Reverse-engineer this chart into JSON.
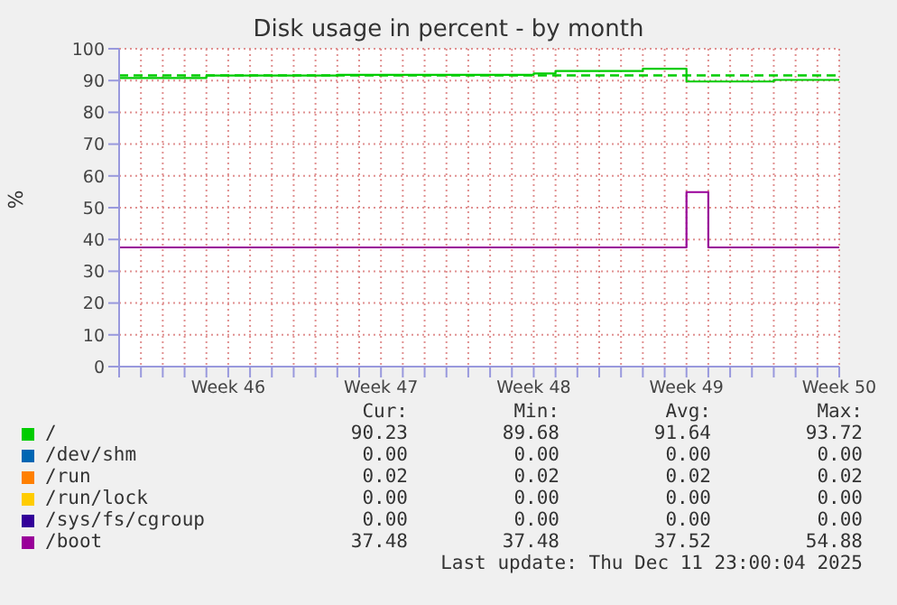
{
  "chart_data": {
    "type": "step",
    "title": "Disk usage in percent - by month",
    "ylabel": "%",
    "categories": [
      null,
      null,
      null,
      null,
      null,
      "Week 46",
      null,
      null,
      null,
      null,
      null,
      null,
      "Week 47",
      null,
      null,
      null,
      null,
      null,
      null,
      "Week 48",
      null,
      null,
      null,
      null,
      null,
      null,
      "Week 49",
      null,
      null,
      null,
      null,
      null,
      null,
      "Week 50"
    ],
    "ylim": [
      0,
      100
    ],
    "yticks": [
      0,
      10,
      20,
      30,
      40,
      50,
      60,
      70,
      80,
      90,
      100
    ],
    "grid": true,
    "legend": "bottom",
    "marker": "none",
    "line_style": "solid",
    "series": [
      {
        "name": "/",
        "color": "#00cc00",
        "values": [
          90.8,
          90.8,
          90.8,
          90.8,
          91.6,
          91.6,
          91.6,
          91.6,
          91.6,
          91.6,
          91.8,
          91.8,
          91.8,
          91.8,
          91.8,
          91.8,
          91.8,
          91.8,
          91.8,
          92.2,
          93.0,
          93.0,
          93.0,
          93.0,
          93.7,
          93.7,
          89.7,
          89.7,
          89.7,
          89.7,
          90.2,
          90.2,
          90.2,
          90.2
        ]
      },
      {
        "name": "/dev/shm",
        "color": "#0066b3",
        "values": [
          null,
          null,
          null,
          null,
          null,
          null,
          null,
          null,
          null,
          null,
          null,
          null,
          null,
          null,
          null,
          null,
          null,
          null,
          null,
          null,
          null,
          null,
          null,
          null,
          null,
          null,
          null,
          null,
          null,
          null,
          null,
          null,
          null,
          null
        ]
      },
      {
        "name": "/run",
        "color": "#ff8000",
        "values": [
          null,
          null,
          null,
          null,
          null,
          null,
          null,
          null,
          null,
          null,
          null,
          null,
          null,
          null,
          null,
          null,
          null,
          null,
          null,
          null,
          null,
          null,
          null,
          null,
          null,
          null,
          null,
          null,
          null,
          null,
          null,
          null,
          null,
          null
        ]
      },
      {
        "name": "/run/lock",
        "color": "#ffcc00",
        "values": [
          null,
          null,
          null,
          null,
          null,
          null,
          null,
          null,
          null,
          null,
          null,
          null,
          null,
          null,
          null,
          null,
          null,
          null,
          null,
          null,
          null,
          null,
          null,
          null,
          null,
          null,
          null,
          null,
          null,
          null,
          null,
          null,
          null,
          null
        ]
      },
      {
        "name": "/sys/fs/cgroup",
        "color": "#330099",
        "values": [
          null,
          null,
          null,
          null,
          null,
          null,
          null,
          null,
          null,
          null,
          null,
          null,
          null,
          null,
          null,
          null,
          null,
          null,
          null,
          null,
          null,
          null,
          null,
          null,
          null,
          null,
          null,
          null,
          null,
          null,
          null,
          null,
          null,
          null
        ]
      },
      {
        "name": "/boot",
        "color": "#990099",
        "values": [
          37.5,
          37.5,
          37.5,
          37.5,
          37.5,
          37.5,
          37.5,
          37.5,
          37.5,
          37.5,
          37.5,
          37.5,
          37.5,
          37.5,
          37.5,
          37.5,
          37.5,
          37.5,
          37.5,
          37.5,
          37.5,
          37.5,
          37.5,
          37.5,
          37.5,
          37.5,
          54.9,
          37.5,
          37.5,
          37.5,
          37.5,
          37.5,
          37.5,
          37.5
        ]
      }
    ],
    "ref_lines": [
      {
        "axis": "y",
        "value": 91.6,
        "color": "#00cc00",
        "line_style": "dashed"
      }
    ],
    "annotations": [
      "Cur:",
      "Min:",
      "Avg:",
      "Max:",
      "90.23",
      "89.68",
      "91.64",
      "93.72",
      "0.00",
      "0.00",
      "0.00",
      "0.00",
      "0.02",
      "0.02",
      "0.02",
      "0.02",
      "0.00",
      "0.00",
      "0.00",
      "0.00",
      "0.00",
      "0.00",
      "0.00",
      "0.00",
      "37.48",
      "37.48",
      "37.52",
      "54.88",
      "Last update: Thu Dec 11 23:00:04 2025"
    ]
  }
}
